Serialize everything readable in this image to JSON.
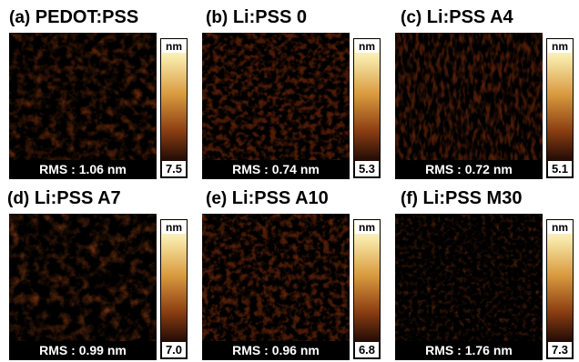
{
  "panels": [
    {
      "letter": "(a)",
      "label": "PEDOT:PSS",
      "rms": "RMS : 1.06 nm",
      "unit": "nm",
      "scale_max": "7.5",
      "texture": "fine"
    },
    {
      "letter": "(b)",
      "label": "Li:PSS 0",
      "rms": "RMS : 0.74 nm",
      "unit": "nm",
      "scale_max": "5.3",
      "texture": "grainy"
    },
    {
      "letter": "(c)",
      "label": "Li:PSS A4",
      "rms": "RMS : 0.72 nm",
      "unit": "nm",
      "scale_max": "5.1",
      "texture": "streaky"
    },
    {
      "letter": "(d)",
      "label": "Li:PSS A7",
      "rms": "RMS : 0.99 nm",
      "unit": "nm",
      "scale_max": "7.0",
      "texture": "mottled"
    },
    {
      "letter": "(e)",
      "label": "Li:PSS A10",
      "rms": "RMS : 0.96 nm",
      "unit": "nm",
      "scale_max": "6.8",
      "texture": "grainy-dense"
    },
    {
      "letter": "(f)",
      "label": "Li:PSS M30",
      "rms": "RMS : 1.76 nm",
      "unit": "nm",
      "scale_max": "7.3",
      "texture": "fine-light"
    }
  ],
  "colormap": [
    "#000000",
    "#2a0f06",
    "#8d3f12",
    "#d99a3f",
    "#f7e8a7",
    "#fffef6"
  ]
}
